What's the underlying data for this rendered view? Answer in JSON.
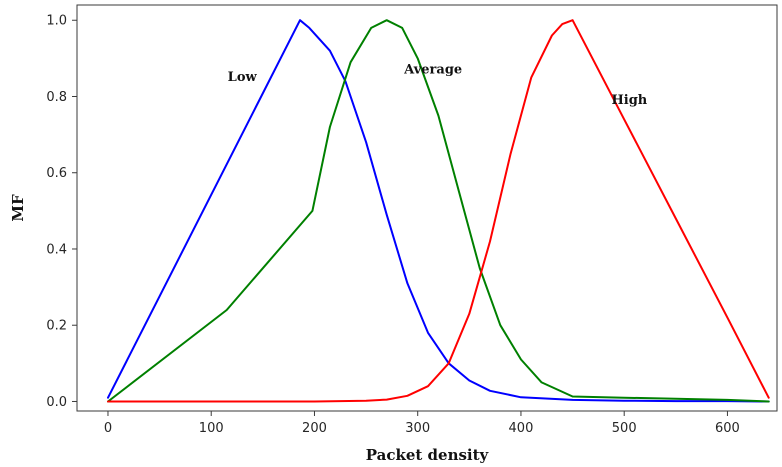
{
  "chart_data": {
    "type": "line",
    "title": "",
    "xlabel": "Packet density",
    "ylabel": "MF",
    "xlim": [
      -30,
      648
    ],
    "ylim": [
      -0.025,
      1.04
    ],
    "xticks": [
      0,
      100,
      200,
      300,
      400,
      500,
      600
    ],
    "yticks": [
      0.0,
      0.2,
      0.4,
      0.6,
      0.8,
      1.0
    ],
    "xtick_labels": [
      "0",
      "100",
      "200",
      "300",
      "400",
      "500",
      "600"
    ],
    "ytick_labels": [
      "0.0",
      "0.2",
      "0.4",
      "0.6",
      "0.8",
      "1.0"
    ],
    "grid": false,
    "series": [
      {
        "name": "Low",
        "color": "#0000ff",
        "x": [
          0,
          186,
          195,
          215,
          230,
          250,
          270,
          290,
          310,
          330,
          350,
          370,
          400,
          450,
          500,
          550,
          600,
          640
        ],
        "y": [
          0.01,
          1.0,
          0.98,
          0.92,
          0.84,
          0.68,
          0.49,
          0.31,
          0.18,
          0.1,
          0.055,
          0.028,
          0.011,
          0.004,
          0.002,
          0.001,
          0.001,
          0.0
        ]
      },
      {
        "name": "Average",
        "color": "#008000",
        "x": [
          0,
          115,
          198,
          215,
          235,
          255,
          270,
          285,
          300,
          320,
          340,
          360,
          380,
          400,
          420,
          450,
          500,
          550,
          600,
          640
        ],
        "y": [
          0.0,
          0.24,
          0.5,
          0.72,
          0.89,
          0.98,
          1.0,
          0.98,
          0.9,
          0.75,
          0.55,
          0.35,
          0.2,
          0.11,
          0.05,
          0.013,
          0.01,
          0.007,
          0.004,
          0.0
        ]
      },
      {
        "name": "High",
        "color": "#ff0000",
        "x": [
          0,
          150,
          200,
          250,
          270,
          290,
          310,
          330,
          350,
          370,
          390,
          410,
          430,
          440,
          450,
          500,
          550,
          600,
          640
        ],
        "y": [
          0.0,
          0.0,
          0.0,
          0.002,
          0.005,
          0.015,
          0.04,
          0.1,
          0.23,
          0.42,
          0.65,
          0.85,
          0.96,
          0.99,
          1.0,
          0.74,
          0.48,
          0.22,
          0.01
        ]
      }
    ],
    "annotations": [
      {
        "text": "Low",
        "x": 130,
        "y": 0.84
      },
      {
        "text": "Average",
        "x": 315,
        "y": 0.86
      },
      {
        "text": "High",
        "x": 505,
        "y": 0.78
      }
    ]
  }
}
